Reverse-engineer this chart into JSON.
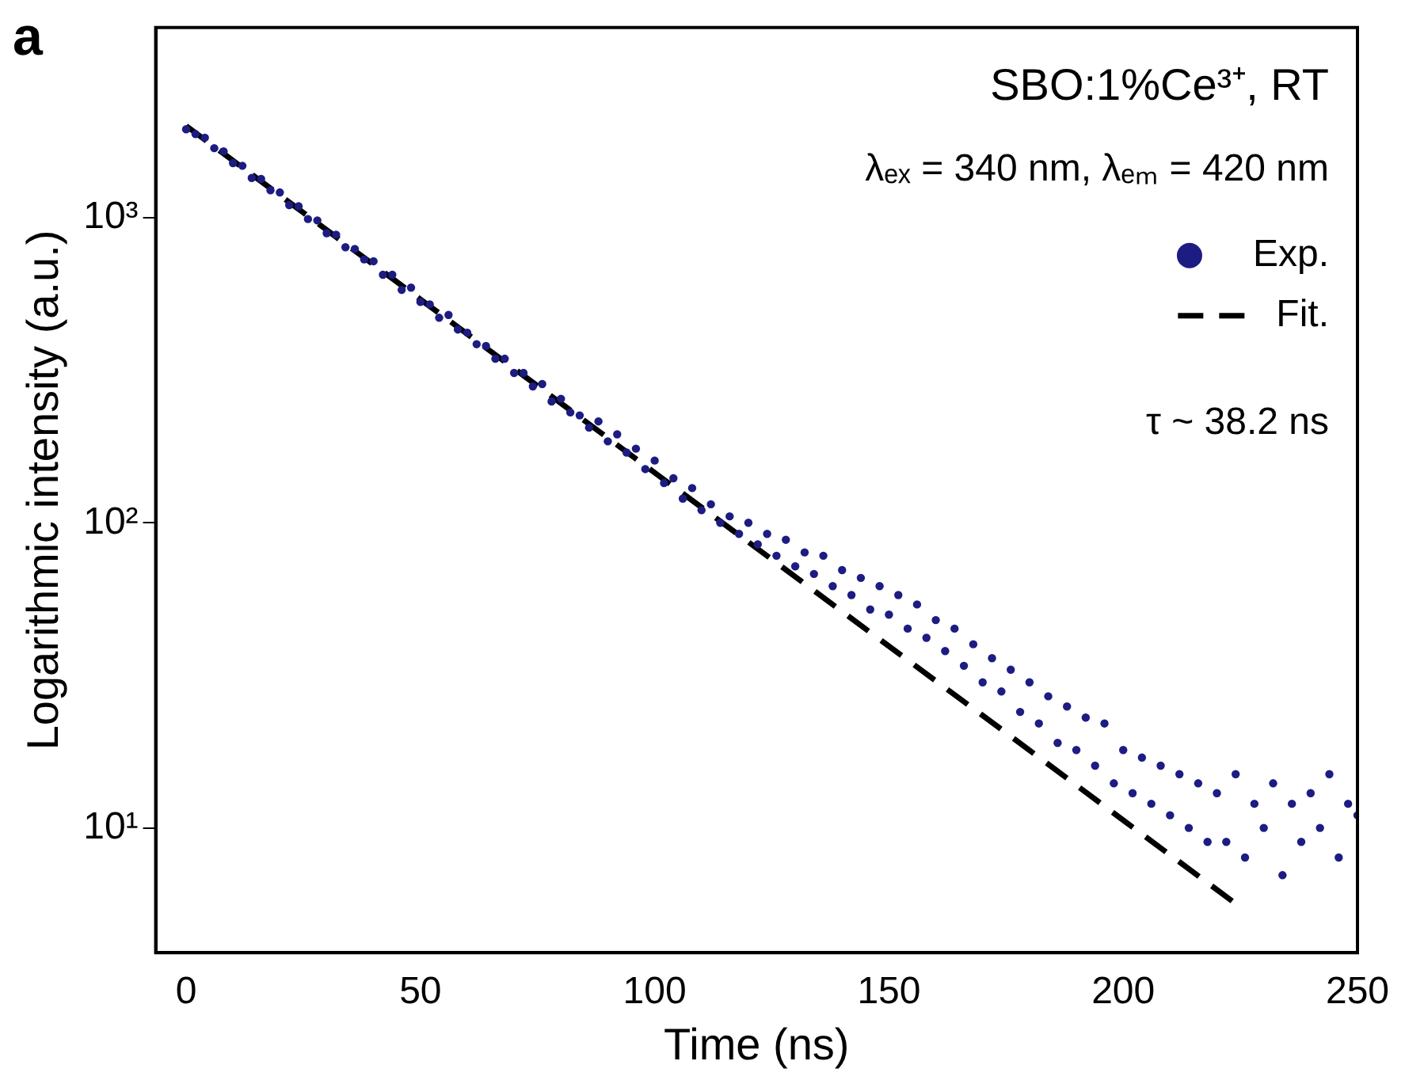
{
  "chart_data": {
    "type": "scatter",
    "title": "a",
    "xlabel": "Time (ns)",
    "ylabel": "Logarithmic intensity (a.u.)",
    "annotations": [
      "SBO:1%Ce³⁺, RT",
      "λₑₓ = 340 nm, λₑₘ = 420 nm",
      "τ ~ 38.2 ns"
    ],
    "log": "y",
    "grid": false,
    "legend": "top right",
    "xlim": [
      -6.5,
      250
    ],
    "xticks": [
      0,
      50,
      100,
      150,
      200,
      250
    ],
    "ylim": [
      3.9,
      4200
    ],
    "yticks": [
      {
        "value": 10,
        "label": "10¹"
      },
      {
        "value": 100,
        "label": "10²"
      },
      {
        "value": 1000,
        "label": "10³"
      }
    ],
    "series": [
      {
        "name": "Exp.",
        "marker": "circle",
        "color": "#1c1c82",
        "x": [
          0,
          2,
          4,
          6,
          8,
          10,
          12,
          14,
          16,
          18,
          20,
          22,
          24,
          26,
          28,
          30,
          32,
          34,
          36,
          38,
          40,
          42,
          44,
          46,
          48,
          50,
          52,
          54,
          56,
          58,
          60,
          62,
          64,
          66,
          68,
          70,
          72,
          74,
          76,
          78,
          80,
          82,
          84,
          86,
          88,
          90,
          92,
          94,
          96,
          98,
          100,
          102,
          104,
          106,
          108,
          110,
          112,
          114,
          116,
          118,
          120,
          122,
          124,
          126,
          128,
          130,
          132,
          134,
          136,
          138,
          140,
          142,
          144,
          146,
          148,
          150,
          152,
          154,
          156,
          158,
          160,
          162,
          164,
          166,
          168,
          170,
          172,
          174,
          176,
          178,
          180,
          182,
          184,
          186,
          188,
          190,
          192,
          194,
          196,
          198,
          200,
          202,
          204,
          206,
          208,
          210,
          212,
          214,
          216,
          218,
          220,
          222,
          224,
          226,
          228,
          230,
          232,
          234,
          236,
          238,
          240,
          242,
          244,
          246,
          248,
          250
        ],
        "values": [
          1950,
          1880,
          1830,
          1690,
          1650,
          1510,
          1480,
          1350,
          1340,
          1230,
          1210,
          1100,
          1090,
          990,
          980,
          890,
          880,
          800,
          790,
          730,
          720,
          650,
          650,
          580,
          590,
          530,
          520,
          470,
          480,
          430,
          420,
          385,
          380,
          345,
          345,
          310,
          310,
          280,
          285,
          250,
          255,
          230,
          225,
          205,
          215,
          185,
          195,
          170,
          175,
          150,
          160,
          135,
          140,
          120,
          130,
          110,
          115,
          100,
          105,
          92,
          100,
          85,
          92,
          78,
          88,
          72,
          80,
          68,
          78,
          62,
          70,
          58,
          66,
          52,
          62,
          50,
          58,
          45,
          54,
          42,
          48,
          38,
          45,
          34,
          40,
          30,
          36,
          28,
          33,
          24,
          30,
          22,
          27,
          19,
          25,
          18,
          23,
          16,
          22,
          14,
          18,
          13,
          17,
          12,
          16,
          11,
          15,
          10,
          14,
          9,
          13,
          9,
          15,
          8,
          12,
          10,
          14,
          7,
          12,
          9,
          13,
          10,
          15,
          8,
          12,
          11
        ]
      },
      {
        "name": "Fit.",
        "type": "line",
        "line_style": "dashed",
        "marker": "none",
        "color": "#000000",
        "x": [
          0,
          25,
          50,
          75,
          100,
          125,
          150,
          175,
          200,
          225
        ],
        "values": [
          2000,
          1039,
          540,
          281,
          146,
          75.9,
          39.4,
          20.5,
          10.6,
          5.5
        ]
      }
    ]
  }
}
